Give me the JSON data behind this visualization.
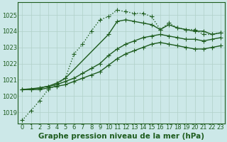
{
  "xlabel": "Graphe pression niveau de la mer (hPa)",
  "background_color": "#cce8e8",
  "grid_color": "#b0d0c8",
  "line_color": "#1e5c1e",
  "xlim": [
    -0.5,
    23.5
  ],
  "ylim": [
    1018.3,
    1025.8
  ],
  "xticks": [
    0,
    1,
    2,
    3,
    4,
    5,
    6,
    7,
    8,
    9,
    10,
    11,
    12,
    13,
    14,
    15,
    16,
    17,
    18,
    19,
    20,
    21,
    22,
    23
  ],
  "yticks": [
    1019,
    1020,
    1021,
    1022,
    1023,
    1024,
    1025
  ],
  "series": [
    {
      "x": [
        0,
        1,
        2,
        3,
        4,
        5,
        6,
        7,
        8,
        9,
        10,
        11,
        12,
        13,
        14,
        15,
        16,
        17,
        18,
        19,
        20,
        21,
        22,
        23
      ],
      "y": [
        1018.5,
        1019.1,
        1019.7,
        1020.4,
        1020.7,
        1021.1,
        1022.6,
        1023.2,
        1024.0,
        1024.7,
        1024.9,
        1025.3,
        1025.2,
        1025.1,
        1025.1,
        1024.9,
        1024.1,
        1024.5,
        1024.2,
        1024.1,
        1024.1,
        1023.8,
        1023.8,
        1023.9
      ],
      "marker": "+",
      "linestyle": "dotted",
      "linewidth": 1.0,
      "markersize": 4
    },
    {
      "x": [
        0,
        2,
        3,
        4,
        5,
        10,
        11,
        12,
        13,
        14,
        15,
        16,
        17,
        18,
        19,
        20,
        21,
        22,
        23
      ],
      "y": [
        1020.4,
        1020.5,
        1020.6,
        1020.8,
        1021.1,
        1023.8,
        1024.6,
        1024.7,
        1024.6,
        1024.5,
        1024.4,
        1024.1,
        1024.4,
        1024.2,
        1024.1,
        1024.0,
        1024.0,
        1023.8,
        1023.9
      ],
      "marker": "+",
      "linestyle": "solid",
      "linewidth": 1.0,
      "markersize": 4
    },
    {
      "x": [
        0,
        1,
        2,
        3,
        4,
        5,
        6,
        7,
        8,
        9,
        10,
        11,
        12,
        13,
        14,
        15,
        16,
        17,
        18,
        19,
        20,
        21,
        22,
        23
      ],
      "y": [
        1020.4,
        1020.4,
        1020.5,
        1020.6,
        1020.7,
        1020.9,
        1021.1,
        1021.4,
        1021.7,
        1022.0,
        1022.5,
        1022.9,
        1023.2,
        1023.4,
        1023.6,
        1023.7,
        1023.8,
        1023.7,
        1023.6,
        1023.5,
        1023.5,
        1023.4,
        1023.5,
        1023.6
      ],
      "marker": "+",
      "linestyle": "solid",
      "linewidth": 1.0,
      "markersize": 4
    },
    {
      "x": [
        0,
        1,
        2,
        3,
        4,
        5,
        6,
        7,
        8,
        9,
        10,
        11,
        12,
        13,
        14,
        15,
        16,
        17,
        18,
        19,
        20,
        21,
        22,
        23
      ],
      "y": [
        1020.4,
        1020.4,
        1020.4,
        1020.5,
        1020.6,
        1020.7,
        1020.9,
        1021.1,
        1021.3,
        1021.5,
        1021.9,
        1022.3,
        1022.6,
        1022.8,
        1023.0,
        1023.2,
        1023.3,
        1023.2,
        1023.1,
        1023.0,
        1022.9,
        1022.9,
        1023.0,
        1023.1
      ],
      "marker": "+",
      "linestyle": "solid",
      "linewidth": 1.0,
      "markersize": 4
    }
  ],
  "xlabel_fontsize": 7.5,
  "tick_fontsize": 6.0,
  "tick_color": "#1e5c1e",
  "label_color": "#1e5c1e",
  "figsize": [
    3.2,
    2.0
  ],
  "dpi": 100
}
